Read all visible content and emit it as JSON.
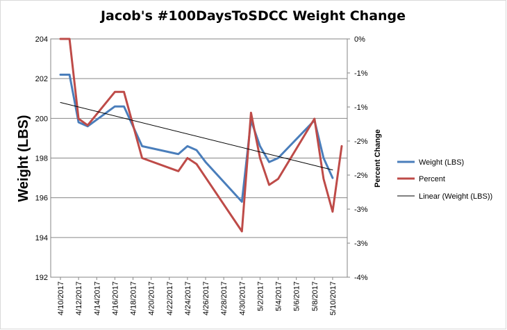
{
  "chart_data": {
    "type": "line",
    "title": "Jacob's #100DaysToSDCC Weight Change",
    "ylabel": "Weight (LBS)",
    "y2label": "Percent Change",
    "xlabel": "",
    "x_tick_labels": [
      "4/10/2017",
      "4/12/2017",
      "4/14/2017",
      "4/16/2017",
      "4/18/2017",
      "4/20/2017",
      "4/22/2017",
      "4/24/2017",
      "4/26/2017",
      "4/28/2017",
      "4/30/2017",
      "5/2/2017",
      "5/4/2017",
      "5/6/2017",
      "5/8/2017",
      "5/10/2017"
    ],
    "xlim": [
      "4/10/2017",
      "5/11/2017"
    ],
    "ylim": [
      192,
      204
    ],
    "y_ticks": [
      "192",
      "194",
      "196",
      "198",
      "200",
      "202",
      "204"
    ],
    "y2lim": [
      -4,
      0
    ],
    "y2_ticks": [
      "0%",
      "-1%",
      "-1%",
      "-2%",
      "-2%",
      "-3%",
      "-3%",
      "-4%"
    ],
    "grid": true,
    "legend_position": "right",
    "series": [
      {
        "name": "Weight (LBS)",
        "axis": "left",
        "color": "#4a7ebb",
        "points": [
          [
            "4/10/2017",
            202.2
          ],
          [
            "4/11/2017",
            202.2
          ],
          [
            "4/12/2017",
            199.8
          ],
          [
            "4/13/2017",
            199.6
          ],
          [
            "4/16/2017",
            200.6
          ],
          [
            "4/17/2017",
            200.6
          ],
          [
            "4/19/2017",
            198.6
          ],
          [
            "4/23/2017",
            198.2
          ],
          [
            "4/24/2017",
            198.6
          ],
          [
            "4/25/2017",
            198.4
          ],
          [
            "4/26/2017",
            197.8
          ],
          [
            "4/30/2017",
            195.8
          ],
          [
            "5/1/2017",
            199.9
          ],
          [
            "5/2/2017",
            198.6
          ],
          [
            "5/3/2017",
            197.8
          ],
          [
            "5/4/2017",
            198.0
          ],
          [
            "5/8/2017",
            199.9
          ],
          [
            "5/9/2017",
            198.0
          ],
          [
            "5/10/2017",
            197.0
          ]
        ]
      },
      {
        "name": "Percent",
        "axis": "right",
        "color": "#be4b48",
        "points": [
          [
            "4/10/2017",
            0.0
          ],
          [
            "4/11/2017",
            0.0
          ],
          [
            "4/12/2017",
            -1.34
          ],
          [
            "4/13/2017",
            -1.45
          ],
          [
            "4/16/2017",
            -0.89
          ],
          [
            "4/17/2017",
            -0.89
          ],
          [
            "4/19/2017",
            -2.0
          ],
          [
            "4/23/2017",
            -2.22
          ],
          [
            "4/24/2017",
            -2.0
          ],
          [
            "4/25/2017",
            -2.1
          ],
          [
            "4/30/2017",
            -3.23
          ],
          [
            "5/1/2017",
            -1.24
          ],
          [
            "5/2/2017",
            -2.0
          ],
          [
            "5/3/2017",
            -2.45
          ],
          [
            "5/4/2017",
            -2.35
          ],
          [
            "5/8/2017",
            -1.34
          ],
          [
            "5/9/2017",
            -2.35
          ],
          [
            "5/10/2017",
            -2.9
          ],
          [
            "5/11/2017",
            -1.8
          ]
        ]
      },
      {
        "name": "Linear (Weight (LBS))",
        "axis": "left",
        "color": "#000000",
        "trendline": true,
        "points": [
          [
            "4/10/2017",
            200.8
          ],
          [
            "5/10/2017",
            197.4
          ]
        ]
      }
    ]
  }
}
